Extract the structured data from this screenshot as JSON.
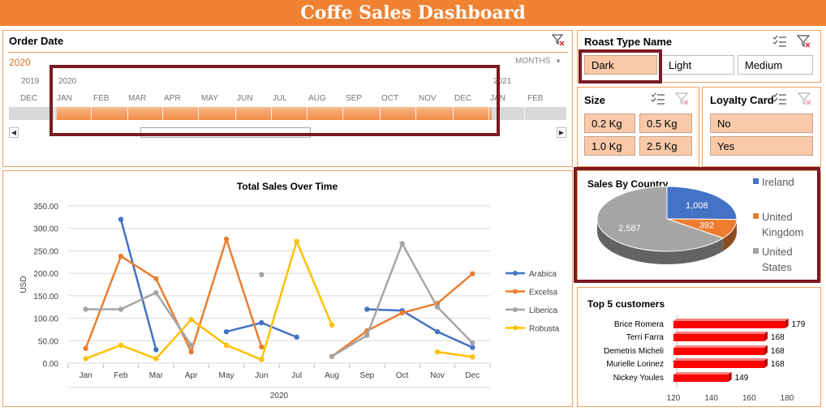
{
  "header": {
    "title": "Coffe Sales Dashboard"
  },
  "timeline": {
    "title": "Order Date",
    "year": "2020",
    "level": "MONTHS",
    "year_labels": [
      "2019",
      "2020",
      "2021"
    ],
    "months": [
      "DEC",
      "JAN",
      "FEB",
      "MAR",
      "APR",
      "MAY",
      "JUN",
      "JUL",
      "AUG",
      "SEP",
      "OCT",
      "NOV",
      "DEC",
      "JAN",
      "FEB"
    ],
    "icons": {
      "clear_filter": "clear-filter-icon",
      "left_arrow": "scroll-left-icon",
      "right_arrow": "scroll-right-icon",
      "dropdown": "caret-down-icon"
    }
  },
  "roast": {
    "title": "Roast Type Name",
    "options": [
      "Dark",
      "Light",
      "Medium"
    ]
  },
  "size": {
    "title": "Size",
    "options": [
      "0.2 Kg",
      "0.5 Kg",
      "1.0 Kg",
      "2.5 Kg"
    ]
  },
  "loyalty": {
    "title": "Loyalty Card",
    "options": [
      "No",
      "Yes"
    ]
  },
  "slicer_icons": {
    "multi_select": "multi-select-icon",
    "clear_filter": "clear-filter-icon"
  },
  "chart_data": [
    {
      "type": "line",
      "title": "Total Sales Over Time",
      "ylabel": "USD",
      "xlabel": "2020",
      "categories": [
        "Jan",
        "Feb",
        "Mar",
        "Apr",
        "May",
        "Jun",
        "Jul",
        "Aug",
        "Sep",
        "Oct",
        "Nov",
        "Dec"
      ],
      "ylim": [
        0,
        350
      ],
      "yticks": [
        "0.00",
        "50.00",
        "100.00",
        "150.00",
        "200.00",
        "250.00",
        "300.00",
        "350.00"
      ],
      "grid": true,
      "legend": "right",
      "series": [
        {
          "name": "Arabica",
          "color": "#4472c4",
          "values": [
            null,
            320,
            30,
            null,
            70,
            90,
            58,
            null,
            120,
            117,
            70,
            35
          ]
        },
        {
          "name": "Excelsa",
          "color": "#ed7d31",
          "values": [
            33,
            238,
            188,
            25,
            276,
            36,
            null,
            15,
            72,
            112,
            133,
            199
          ]
        },
        {
          "name": "Liberica",
          "color": "#a5a5a5",
          "values": [
            120,
            120,
            157,
            40,
            null,
            197,
            null,
            15,
            62,
            266,
            125,
            45
          ]
        },
        {
          "name": "Robusta",
          "color": "#ffc000",
          "values": [
            10,
            40,
            10,
            97,
            40,
            8,
            271,
            85,
            null,
            null,
            25,
            14
          ]
        }
      ]
    },
    {
      "type": "pie",
      "title": "Sales By Country",
      "legend": "right",
      "slices": [
        {
          "name": "Ireland",
          "value": 1008,
          "label": "1,008",
          "color": "#4472c4"
        },
        {
          "name": "United Kingdom",
          "value": 392,
          "label": "392",
          "color": "#ed7d31"
        },
        {
          "name": "United States",
          "value": 2587,
          "label": "2,587",
          "color": "#a5a5a5"
        }
      ]
    },
    {
      "type": "bar",
      "title": "Top 5 customers",
      "orientation": "horizontal",
      "categories": [
        "Brice Romera",
        "Terri Farra",
        "Demetris Micheli",
        "Murielle Lorinez",
        "Nickey Youles"
      ],
      "values": [
        179,
        168,
        168,
        168,
        149
      ],
      "xlim": [
        120,
        180
      ],
      "xticks": [
        "120",
        "140",
        "160",
        "180"
      ],
      "color": "#ff0000"
    }
  ]
}
